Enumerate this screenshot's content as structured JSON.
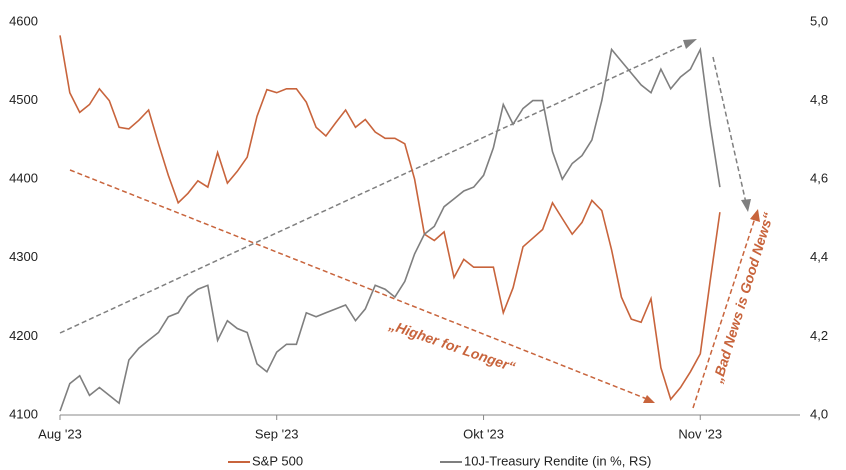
{
  "chart_data": {
    "type": "line",
    "categories": [
      "Aug '23",
      null,
      null,
      null,
      null,
      null,
      null,
      null,
      null,
      null,
      null,
      null,
      null,
      null,
      null,
      null,
      null,
      null,
      null,
      null,
      null,
      null,
      "Sep '23",
      null,
      null,
      null,
      null,
      null,
      null,
      null,
      null,
      null,
      null,
      null,
      null,
      null,
      null,
      null,
      null,
      null,
      null,
      null,
      null,
      "Okt '23",
      null,
      null,
      null,
      null,
      null,
      null,
      null,
      null,
      null,
      null,
      null,
      null,
      null,
      null,
      null,
      null,
      null,
      null,
      null,
      null,
      null,
      "Nov '23",
      null,
      null
    ],
    "series": [
      {
        "name": "S&P 500",
        "color": "#c8643c",
        "values": [
          4583,
          4510,
          4485,
          4495,
          4515,
          4500,
          4466,
          4464,
          4475,
          4488,
          4445,
          4405,
          4370,
          4382,
          4398,
          4390,
          4434,
          4395,
          4410,
          4428,
          4480,
          4514,
          4510,
          4515,
          4515,
          4498,
          4466,
          4455,
          4472,
          4488,
          4466,
          4476,
          4460,
          4452,
          4452,
          4445,
          4400,
          4330,
          4322,
          4333,
          4275,
          4298,
          4288,
          4288,
          4288,
          4230,
          4262,
          4314,
          4325,
          4336,
          4370,
          4350,
          4330,
          4345,
          4373,
          4360,
          4310,
          4250,
          4222,
          4218,
          4248,
          4160,
          4120,
          4135,
          4155,
          4178,
          4270,
          4358
        ]
      },
      {
        "name": "10J-Treasury Rendite (in %, RS)",
        "color": "#7f7f7f",
        "axis": "y2",
        "values": [
          4.01,
          4.08,
          4.1,
          4.05,
          4.07,
          4.05,
          4.03,
          4.14,
          4.17,
          4.19,
          4.21,
          4.25,
          4.26,
          4.3,
          4.32,
          4.33,
          4.19,
          4.24,
          4.22,
          4.21,
          4.13,
          4.11,
          4.16,
          4.18,
          4.18,
          4.26,
          4.25,
          4.26,
          4.27,
          4.28,
          4.24,
          4.27,
          4.33,
          4.32,
          4.3,
          4.34,
          4.41,
          4.46,
          4.48,
          4.53,
          4.55,
          4.57,
          4.58,
          4.61,
          4.68,
          4.79,
          4.74,
          4.78,
          4.8,
          4.8,
          4.67,
          4.6,
          4.64,
          4.66,
          4.7,
          4.8,
          4.93,
          4.9,
          4.87,
          4.84,
          4.82,
          4.88,
          4.83,
          4.86,
          4.88,
          4.93,
          4.74,
          4.58
        ]
      }
    ],
    "ylim": [
      4100,
      4600
    ],
    "yticks": [
      4100,
      4200,
      4300,
      4400,
      4500,
      4600
    ],
    "y2lim": [
      4.0,
      5.0
    ],
    "y2ticks": [
      {
        "value": 4.0,
        "label": "4,0"
      },
      {
        "value": 4.2,
        "label": "4,2"
      },
      {
        "value": 4.4,
        "label": "4,4"
      },
      {
        "value": 4.6,
        "label": "4,6"
      },
      {
        "value": 4.8,
        "label": "4,8"
      },
      {
        "value": 5.0,
        "label": "5,0"
      }
    ],
    "annotations": [
      "„Higher for Longer“",
      "„Bad News is Good News“"
    ],
    "grid": false,
    "legend": "bottom"
  }
}
